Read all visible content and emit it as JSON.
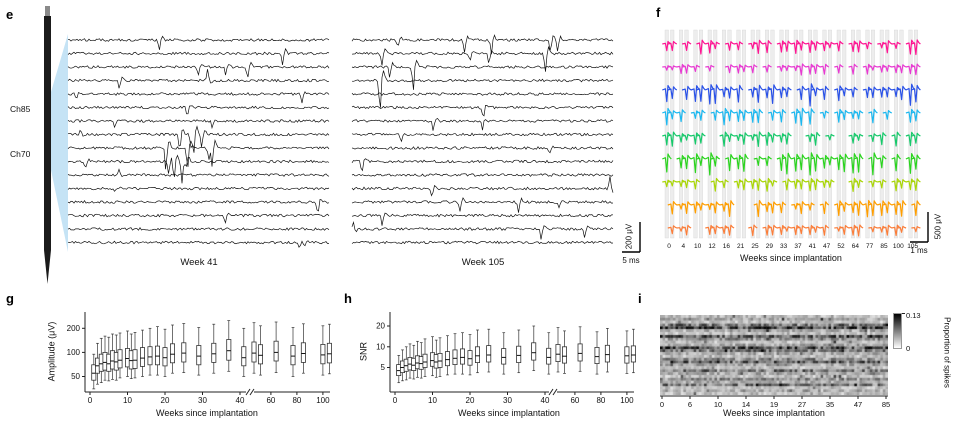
{
  "panel_labels": {
    "e": "e",
    "f": "f",
    "g": "g",
    "h": "h",
    "i": "i"
  },
  "chart_data": [
    {
      "id": "e",
      "type": "line",
      "kind": "raw-extracellular-traces",
      "channel_top": "Ch85",
      "channel_bottom": "Ch70",
      "groups": [
        "Week 41",
        "Week 105"
      ],
      "n_traces_per_group": 16,
      "scalebar": {
        "voltage": "200 μV",
        "time": "5 ms"
      }
    },
    {
      "id": "f",
      "type": "line",
      "kind": "spike-waveform-grid",
      "xlabel": "Weeks since implantation",
      "weeks": [
        "0",
        "4",
        "10",
        "12",
        "16",
        "21",
        "25",
        "29",
        "33",
        "37",
        "41",
        "47",
        "52",
        "64",
        "77",
        "85",
        "100",
        "105"
      ],
      "n_rows": 9,
      "row_colors": [
        "#ff1493",
        "#e83ad2",
        "#2a52e8",
        "#1cb8f0",
        "#17c96b",
        "#2bd41f",
        "#a9d606",
        "#ff9e00",
        "#fb7e3a"
      ],
      "scalebar": {
        "voltage": "500 μV",
        "time": "1 ms"
      }
    },
    {
      "id": "g",
      "type": "box",
      "ylabel": "Amplitude (μV)",
      "xlabel": "Weeks since implantation",
      "yticks": [
        50,
        100,
        200
      ],
      "xticks": [
        0,
        10,
        20,
        30,
        40,
        60,
        80,
        100
      ],
      "axis_break_after": 40,
      "y_scale": "log",
      "boxes": [
        {
          "week": 1,
          "lo": 35,
          "q1": 45,
          "med": 55,
          "q3": 70,
          "hi": 95
        },
        {
          "week": 2,
          "lo": 40,
          "q1": 55,
          "med": 68,
          "q3": 85,
          "hi": 130
        },
        {
          "week": 3,
          "lo": 42,
          "q1": 58,
          "med": 72,
          "q3": 95,
          "hi": 150
        },
        {
          "week": 4,
          "lo": 45,
          "q1": 60,
          "med": 75,
          "q3": 100,
          "hi": 160
        },
        {
          "week": 5,
          "lo": 44,
          "q1": 58,
          "med": 72,
          "q3": 95,
          "hi": 155
        },
        {
          "week": 6,
          "lo": 46,
          "q1": 62,
          "med": 78,
          "q3": 105,
          "hi": 170
        },
        {
          "week": 7,
          "lo": 45,
          "q1": 60,
          "med": 76,
          "q3": 100,
          "hi": 165
        },
        {
          "week": 8,
          "lo": 48,
          "q1": 64,
          "med": 80,
          "q3": 108,
          "hi": 175
        },
        {
          "week": 10,
          "lo": 50,
          "q1": 66,
          "med": 84,
          "q3": 112,
          "hi": 185
        },
        {
          "week": 11,
          "lo": 47,
          "q1": 62,
          "med": 79,
          "q3": 105,
          "hi": 170
        },
        {
          "week": 12,
          "lo": 48,
          "q1": 63,
          "med": 80,
          "q3": 108,
          "hi": 178
        },
        {
          "week": 14,
          "lo": 50,
          "q1": 67,
          "med": 85,
          "q3": 115,
          "hi": 190
        },
        {
          "week": 16,
          "lo": 52,
          "q1": 70,
          "med": 88,
          "q3": 118,
          "hi": 200
        },
        {
          "week": 18,
          "lo": 52,
          "q1": 70,
          "med": 90,
          "q3": 120,
          "hi": 210
        },
        {
          "week": 20,
          "lo": 50,
          "q1": 68,
          "med": 86,
          "q3": 115,
          "hi": 195
        },
        {
          "week": 22,
          "lo": 55,
          "q1": 74,
          "med": 95,
          "q3": 128,
          "hi": 220
        },
        {
          "week": 25,
          "lo": 56,
          "q1": 76,
          "med": 98,
          "q3": 132,
          "hi": 230
        },
        {
          "week": 29,
          "lo": 52,
          "q1": 70,
          "med": 90,
          "q3": 122,
          "hi": 205
        },
        {
          "week": 33,
          "lo": 55,
          "q1": 75,
          "med": 96,
          "q3": 130,
          "hi": 225
        },
        {
          "week": 37,
          "lo": 58,
          "q1": 80,
          "med": 105,
          "q3": 145,
          "hi": 250
        },
        {
          "week": 41,
          "lo": 50,
          "q1": 68,
          "med": 86,
          "q3": 118,
          "hi": 200
        },
        {
          "week": 47,
          "lo": 55,
          "q1": 76,
          "med": 98,
          "q3": 135,
          "hi": 235
        },
        {
          "week": 52,
          "lo": 52,
          "q1": 72,
          "med": 92,
          "q3": 125,
          "hi": 215
        },
        {
          "week": 64,
          "lo": 56,
          "q1": 78,
          "med": 100,
          "q3": 138,
          "hi": 240
        },
        {
          "week": 77,
          "lo": 50,
          "q1": 70,
          "med": 90,
          "q3": 122,
          "hi": 205
        },
        {
          "week": 85,
          "lo": 55,
          "q1": 75,
          "med": 97,
          "q3": 132,
          "hi": 228
        },
        {
          "week": 100,
          "lo": 52,
          "q1": 72,
          "med": 93,
          "q3": 126,
          "hi": 215
        },
        {
          "week": 105,
          "lo": 54,
          "q1": 74,
          "med": 96,
          "q3": 130,
          "hi": 225
        }
      ]
    },
    {
      "id": "h",
      "type": "box",
      "ylabel": "SNR",
      "xlabel": "Weeks since implantation",
      "yticks": [
        5,
        10,
        20
      ],
      "xticks": [
        0,
        10,
        20,
        30,
        40,
        60,
        80,
        100
      ],
      "axis_break_after": 40,
      "y_scale": "log",
      "boxes": [
        {
          "week": 1,
          "lo": 3.0,
          "q1": 3.8,
          "med": 4.5,
          "q3": 5.5,
          "hi": 7.5
        },
        {
          "week": 2,
          "lo": 3.2,
          "q1": 4.2,
          "med": 5.0,
          "q3": 6.2,
          "hi": 9.0
        },
        {
          "week": 3,
          "lo": 3.3,
          "q1": 4.4,
          "med": 5.3,
          "q3": 6.6,
          "hi": 10
        },
        {
          "week": 4,
          "lo": 3.5,
          "q1": 4.6,
          "med": 5.6,
          "q3": 7.0,
          "hi": 11
        },
        {
          "week": 5,
          "lo": 3.4,
          "q1": 4.5,
          "med": 5.4,
          "q3": 6.8,
          "hi": 10.5
        },
        {
          "week": 6,
          "lo": 3.6,
          "q1": 4.8,
          "med": 5.8,
          "q3": 7.4,
          "hi": 12
        },
        {
          "week": 7,
          "lo": 3.5,
          "q1": 4.7,
          "med": 5.7,
          "q3": 7.2,
          "hi": 11.5
        },
        {
          "week": 8,
          "lo": 3.7,
          "q1": 5.0,
          "med": 6.0,
          "q3": 7.8,
          "hi": 13
        },
        {
          "week": 10,
          "lo": 3.8,
          "q1": 5.2,
          "med": 6.3,
          "q3": 8.2,
          "hi": 14
        },
        {
          "week": 11,
          "lo": 3.6,
          "q1": 4.9,
          "med": 6.0,
          "q3": 7.7,
          "hi": 12.5
        },
        {
          "week": 12,
          "lo": 3.7,
          "q1": 5.0,
          "med": 6.2,
          "q3": 8.0,
          "hi": 13.5
        },
        {
          "week": 14,
          "lo": 3.9,
          "q1": 5.3,
          "med": 6.5,
          "q3": 8.5,
          "hi": 14.5
        },
        {
          "week": 16,
          "lo": 4.0,
          "q1": 5.5,
          "med": 6.8,
          "q3": 9.0,
          "hi": 15.5
        },
        {
          "week": 18,
          "lo": 4.0,
          "q1": 5.6,
          "med": 7.0,
          "q3": 9.3,
          "hi": 16
        },
        {
          "week": 20,
          "lo": 3.9,
          "q1": 5.4,
          "med": 6.7,
          "q3": 8.8,
          "hi": 15
        },
        {
          "week": 22,
          "lo": 4.2,
          "q1": 5.9,
          "med": 7.4,
          "q3": 10,
          "hi": 17.5
        },
        {
          "week": 25,
          "lo": 4.3,
          "q1": 6.0,
          "med": 7.6,
          "q3": 10.4,
          "hi": 18
        },
        {
          "week": 29,
          "lo": 4.0,
          "q1": 5.6,
          "med": 7.0,
          "q3": 9.4,
          "hi": 16
        },
        {
          "week": 33,
          "lo": 4.2,
          "q1": 5.9,
          "med": 7.5,
          "q3": 10.2,
          "hi": 17.5
        },
        {
          "week": 37,
          "lo": 4.5,
          "q1": 6.4,
          "med": 8.2,
          "q3": 11.4,
          "hi": 20
        },
        {
          "week": 41,
          "lo": 4.0,
          "q1": 5.6,
          "med": 7.0,
          "q3": 9.5,
          "hi": 16
        },
        {
          "week": 47,
          "lo": 4.3,
          "q1": 6.1,
          "med": 7.8,
          "q3": 10.8,
          "hi": 19
        },
        {
          "week": 52,
          "lo": 4.1,
          "q1": 5.8,
          "med": 7.3,
          "q3": 10,
          "hi": 17
        },
        {
          "week": 64,
          "lo": 4.4,
          "q1": 6.2,
          "med": 8.0,
          "q3": 11,
          "hi": 19.5
        },
        {
          "week": 77,
          "lo": 4.0,
          "q1": 5.7,
          "med": 7.2,
          "q3": 9.8,
          "hi": 16.5
        },
        {
          "week": 85,
          "lo": 4.3,
          "q1": 6.0,
          "med": 7.7,
          "q3": 10.5,
          "hi": 18.5
        },
        {
          "week": 100,
          "lo": 4.1,
          "q1": 5.8,
          "med": 7.4,
          "q3": 10,
          "hi": 17
        },
        {
          "week": 105,
          "lo": 4.2,
          "q1": 6.0,
          "med": 7.6,
          "q3": 10.3,
          "hi": 18
        }
      ]
    },
    {
      "id": "i",
      "type": "heatmap",
      "xlabel": "Weeks since implantation",
      "xticks": [
        0,
        6,
        10,
        14,
        19,
        27,
        35,
        47,
        85
      ],
      "colorbar": {
        "label": "Proportion of spikes",
        "min": 0,
        "max": 0.13
      },
      "n_rows": 28,
      "n_cols": 88,
      "row_means": [
        0.02,
        0.03,
        0.02,
        0.05,
        0.08,
        0.03,
        0.02,
        0.06,
        0.04,
        0.02,
        0.03,
        0.07,
        0.05,
        0.03,
        0.02,
        0.04,
        0.06,
        0.03,
        0.02,
        0.05,
        0.03,
        0.02,
        0.04,
        0.03,
        0.05,
        0.02,
        0.03,
        0.02
      ]
    }
  ]
}
